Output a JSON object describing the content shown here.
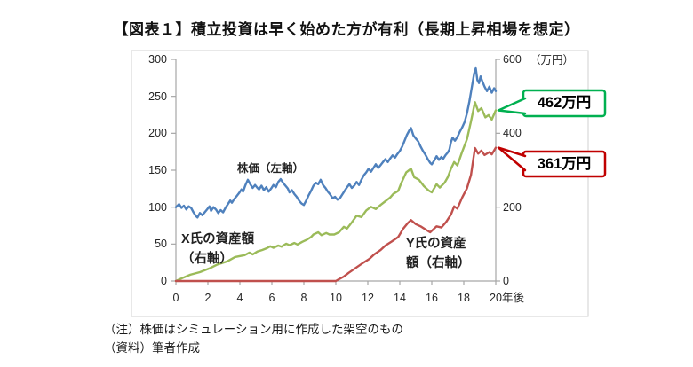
{
  "title": "【図表１】積立投資は早く始めた方が有利（長期上昇相場を想定）",
  "notes": [
    "（注）株価はシミュレーション用に作成した架空のもの",
    "（資料）筆者作成"
  ],
  "chart_data": {
    "type": "line",
    "grid": false,
    "x_axis": {
      "range": [
        0,
        20
      ],
      "ticks": [
        0,
        2,
        4,
        6,
        8,
        10,
        12,
        14,
        16,
        18,
        20
      ],
      "unit": "年後"
    },
    "y_axis_left": {
      "range": [
        0,
        300
      ],
      "ticks": [
        0,
        50,
        100,
        150,
        200,
        250,
        300
      ]
    },
    "y_axis_right": {
      "range": [
        0,
        600
      ],
      "ticks": [
        0,
        200,
        400,
        600
      ],
      "unit": "（万円）"
    },
    "series_labels": {
      "stock": "株価（左軸）",
      "x_person": "X氏の資産額\n（右軸）",
      "y_person": "Y氏の資産\n額（右軸）"
    },
    "series": [
      {
        "name": "株価（左軸）",
        "axis": "left",
        "color": "#4F81BD",
        "points": [
          [
            0,
            100
          ],
          [
            0.2,
            104
          ],
          [
            0.35,
            99
          ],
          [
            0.5,
            102
          ],
          [
            0.65,
            97
          ],
          [
            0.8,
            101
          ],
          [
            0.95,
            99
          ],
          [
            1.1,
            93
          ],
          [
            1.25,
            88
          ],
          [
            1.35,
            86
          ],
          [
            1.5,
            92
          ],
          [
            1.65,
            89
          ],
          [
            1.8,
            93
          ],
          [
            1.95,
            97
          ],
          [
            2.1,
            101
          ],
          [
            2.2,
            95
          ],
          [
            2.35,
            100
          ],
          [
            2.5,
            97
          ],
          [
            2.65,
            92
          ],
          [
            2.8,
            96
          ],
          [
            2.95,
            93
          ],
          [
            3.1,
            99
          ],
          [
            3.25,
            104
          ],
          [
            3.4,
            109
          ],
          [
            3.5,
            106
          ],
          [
            3.65,
            111
          ],
          [
            3.8,
            115
          ],
          [
            3.95,
            119
          ],
          [
            4.1,
            124
          ],
          [
            4.2,
            121
          ],
          [
            4.35,
            130
          ],
          [
            4.5,
            137
          ],
          [
            4.65,
            131
          ],
          [
            4.8,
            126
          ],
          [
            4.95,
            130
          ],
          [
            5.1,
            126
          ],
          [
            5.2,
            124
          ],
          [
            5.35,
            129
          ],
          [
            5.5,
            123
          ],
          [
            5.65,
            127
          ],
          [
            5.8,
            121
          ],
          [
            5.95,
            125
          ],
          [
            6.1,
            130
          ],
          [
            6.25,
            127
          ],
          [
            6.4,
            134
          ],
          [
            6.55,
            138
          ],
          [
            6.7,
            133
          ],
          [
            6.85,
            129
          ],
          [
            7,
            125
          ],
          [
            7.1,
            120
          ],
          [
            7.25,
            123
          ],
          [
            7.4,
            118
          ],
          [
            7.55,
            114
          ],
          [
            7.7,
            109
          ],
          [
            7.85,
            105
          ],
          [
            8,
            103
          ],
          [
            8.15,
            109
          ],
          [
            8.3,
            116
          ],
          [
            8.45,
            122
          ],
          [
            8.6,
            129
          ],
          [
            8.75,
            133
          ],
          [
            8.9,
            131
          ],
          [
            9.05,
            137
          ],
          [
            9.2,
            130
          ],
          [
            9.35,
            126
          ],
          [
            9.5,
            121
          ],
          [
            9.65,
            117
          ],
          [
            9.8,
            112
          ],
          [
            9.95,
            114
          ],
          [
            10.1,
            110
          ],
          [
            10.25,
            112
          ],
          [
            10.4,
            117
          ],
          [
            10.55,
            122
          ],
          [
            10.7,
            127
          ],
          [
            10.85,
            131
          ],
          [
            11,
            126
          ],
          [
            11.15,
            129
          ],
          [
            11.3,
            134
          ],
          [
            11.45,
            130
          ],
          [
            11.6,
            137
          ],
          [
            11.75,
            143
          ],
          [
            11.9,
            147
          ],
          [
            12.05,
            152
          ],
          [
            12.2,
            148
          ],
          [
            12.35,
            153
          ],
          [
            12.5,
            158
          ],
          [
            12.65,
            153
          ],
          [
            12.8,
            157
          ],
          [
            12.95,
            161
          ],
          [
            13.1,
            165
          ],
          [
            13.25,
            161
          ],
          [
            13.4,
            166
          ],
          [
            13.55,
            170
          ],
          [
            13.7,
            167
          ],
          [
            13.85,
            172
          ],
          [
            14,
            176
          ],
          [
            14.15,
            182
          ],
          [
            14.3,
            190
          ],
          [
            14.45,
            198
          ],
          [
            14.6,
            204
          ],
          [
            14.7,
            207
          ],
          [
            14.85,
            197
          ],
          [
            15,
            193
          ],
          [
            15.15,
            189
          ],
          [
            15.3,
            182
          ],
          [
            15.45,
            176
          ],
          [
            15.6,
            171
          ],
          [
            15.75,
            165
          ],
          [
            15.9,
            160
          ],
          [
            16,
            158
          ],
          [
            16.15,
            163
          ],
          [
            16.3,
            169
          ],
          [
            16.45,
            164
          ],
          [
            16.6,
            168
          ],
          [
            16.7,
            165
          ],
          [
            16.85,
            170
          ],
          [
            17,
            174
          ],
          [
            17.1,
            178
          ],
          [
            17.2,
            188
          ],
          [
            17.3,
            194
          ],
          [
            17.45,
            190
          ],
          [
            17.6,
            195
          ],
          [
            17.75,
            202
          ],
          [
            17.9,
            208
          ],
          [
            18.05,
            215
          ],
          [
            18.2,
            227
          ],
          [
            18.35,
            243
          ],
          [
            18.5,
            262
          ],
          [
            18.65,
            281
          ],
          [
            18.75,
            288
          ],
          [
            18.85,
            272
          ],
          [
            18.95,
            268
          ],
          [
            19.05,
            277
          ],
          [
            19.15,
            271
          ],
          [
            19.3,
            263
          ],
          [
            19.45,
            257
          ],
          [
            19.6,
            263
          ],
          [
            19.75,
            255
          ],
          [
            19.9,
            261
          ],
          [
            20,
            257
          ]
        ]
      },
      {
        "name": "X氏の資産額（右軸）",
        "axis": "right",
        "color": "#9BBB59",
        "points": [
          [
            0,
            0
          ],
          [
            0.4,
            8
          ],
          [
            0.9,
            17
          ],
          [
            1.5,
            24
          ],
          [
            2.1,
            34
          ],
          [
            2.6,
            45
          ],
          [
            3.2,
            53
          ],
          [
            3.7,
            65
          ],
          [
            4.3,
            70
          ],
          [
            4.6,
            77
          ],
          [
            4.8,
            72
          ],
          [
            5.1,
            80
          ],
          [
            5.4,
            84
          ],
          [
            5.7,
            89
          ],
          [
            5.9,
            94
          ],
          [
            6.1,
            90
          ],
          [
            6.4,
            96
          ],
          [
            6.6,
            93
          ],
          [
            6.9,
            101
          ],
          [
            7.1,
            97
          ],
          [
            7.4,
            103
          ],
          [
            7.6,
            99
          ],
          [
            7.9,
            106
          ],
          [
            8.2,
            112
          ],
          [
            8.45,
            119
          ],
          [
            8.6,
            126
          ],
          [
            8.9,
            132
          ],
          [
            9.1,
            124
          ],
          [
            9.4,
            130
          ],
          [
            9.6,
            126
          ],
          [
            9.9,
            126
          ],
          [
            10.2,
            132
          ],
          [
            10.5,
            147
          ],
          [
            10.7,
            142
          ],
          [
            11,
            159
          ],
          [
            11.3,
            177
          ],
          [
            11.6,
            173
          ],
          [
            11.9,
            191
          ],
          [
            12.2,
            201
          ],
          [
            12.5,
            195
          ],
          [
            12.8,
            206
          ],
          [
            13.1,
            216
          ],
          [
            13.4,
            226
          ],
          [
            13.6,
            236
          ],
          [
            13.9,
            244
          ],
          [
            14.1,
            266
          ],
          [
            14.4,
            294
          ],
          [
            14.7,
            304
          ],
          [
            14.9,
            281
          ],
          [
            15.2,
            274
          ],
          [
            15.5,
            257
          ],
          [
            15.8,
            245
          ],
          [
            16,
            240
          ],
          [
            16.3,
            262
          ],
          [
            16.5,
            253
          ],
          [
            16.8,
            266
          ],
          [
            17,
            281
          ],
          [
            17.2,
            304
          ],
          [
            17.4,
            322
          ],
          [
            17.6,
            313
          ],
          [
            17.9,
            350
          ],
          [
            18.2,
            384
          ],
          [
            18.45,
            432
          ],
          [
            18.7,
            484
          ],
          [
            18.9,
            460
          ],
          [
            19.1,
            468
          ],
          [
            19.35,
            443
          ],
          [
            19.55,
            449
          ],
          [
            19.75,
            437
          ],
          [
            20,
            462
          ]
        ]
      },
      {
        "name": "Y氏の資産額（右軸）",
        "axis": "right",
        "color": "#C0504D",
        "points": [
          [
            0,
            0
          ],
          [
            10,
            0
          ],
          [
            10.2,
            5
          ],
          [
            10.5,
            12
          ],
          [
            10.8,
            22
          ],
          [
            11.2,
            34
          ],
          [
            11.6,
            46
          ],
          [
            12.1,
            60
          ],
          [
            12.4,
            72
          ],
          [
            12.8,
            84
          ],
          [
            13.1,
            96
          ],
          [
            13.5,
            107
          ],
          [
            13.9,
            119
          ],
          [
            14.2,
            141
          ],
          [
            14.5,
            157
          ],
          [
            14.7,
            165
          ],
          [
            15,
            154
          ],
          [
            15.3,
            148
          ],
          [
            15.7,
            137
          ],
          [
            15.9,
            132
          ],
          [
            16.3,
            148
          ],
          [
            16.6,
            145
          ],
          [
            16.9,
            160
          ],
          [
            17.2,
            180
          ],
          [
            17.4,
            202
          ],
          [
            17.6,
            196
          ],
          [
            17.9,
            226
          ],
          [
            18.2,
            251
          ],
          [
            18.45,
            287
          ],
          [
            18.7,
            360
          ],
          [
            18.9,
            345
          ],
          [
            19.1,
            353
          ],
          [
            19.3,
            341
          ],
          [
            19.6,
            349
          ],
          [
            19.75,
            343
          ],
          [
            20,
            361
          ]
        ]
      }
    ],
    "annotations": [
      {
        "text": "462万円",
        "value": 462,
        "axis": "right",
        "color": "#00B050",
        "series": "X氏の資産額（右軸）"
      },
      {
        "text": "361万円",
        "value": 361,
        "axis": "right",
        "color": "#C00000",
        "series": "Y氏の資産額（右軸）"
      }
    ]
  }
}
